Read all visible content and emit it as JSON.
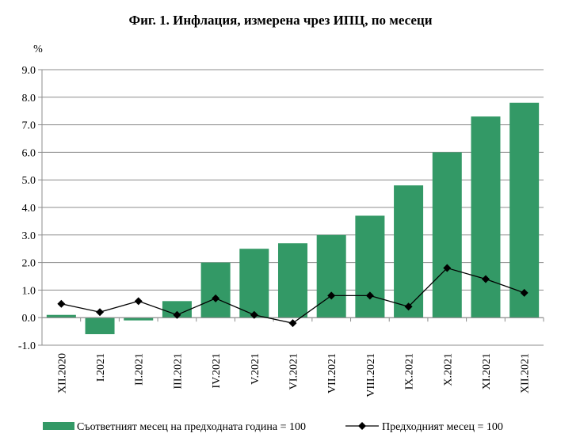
{
  "chart_data": {
    "type": "bar",
    "title": "Фиг. 1. Инфлация, измерена чрез ИПЦ, по месеци",
    "ylabel": "%",
    "xlabel": "",
    "ylim": [
      -1.0,
      9.0
    ],
    "y_ticks": [
      "-1.0",
      "0.0",
      "1.0",
      "2.0",
      "3.0",
      "4.0",
      "5.0",
      "6.0",
      "7.0",
      "8.0",
      "9.0"
    ],
    "categories": [
      "XII.2020",
      "I.2021",
      "II.2021",
      "III.2021",
      "IV.2021",
      "V.2021",
      "VI.2021",
      "VII.2021",
      "VIII.2021",
      "IX.2021",
      "X.2021",
      "XI.2021",
      "XII.2021"
    ],
    "series": [
      {
        "name": "Съответният месец на предходната година = 100",
        "kind": "bar",
        "color": "#339966",
        "values": [
          0.1,
          -0.6,
          -0.1,
          0.6,
          2.0,
          2.5,
          2.7,
          3.0,
          3.7,
          4.8,
          6.0,
          7.3,
          7.8
        ]
      },
      {
        "name": "Предходният месец = 100",
        "kind": "line",
        "color": "#000000",
        "values": [
          0.5,
          0.2,
          0.6,
          0.1,
          0.7,
          0.1,
          -0.2,
          0.8,
          0.8,
          0.4,
          1.8,
          1.4,
          0.9
        ]
      }
    ],
    "grid": true,
    "legend": "bottom"
  }
}
